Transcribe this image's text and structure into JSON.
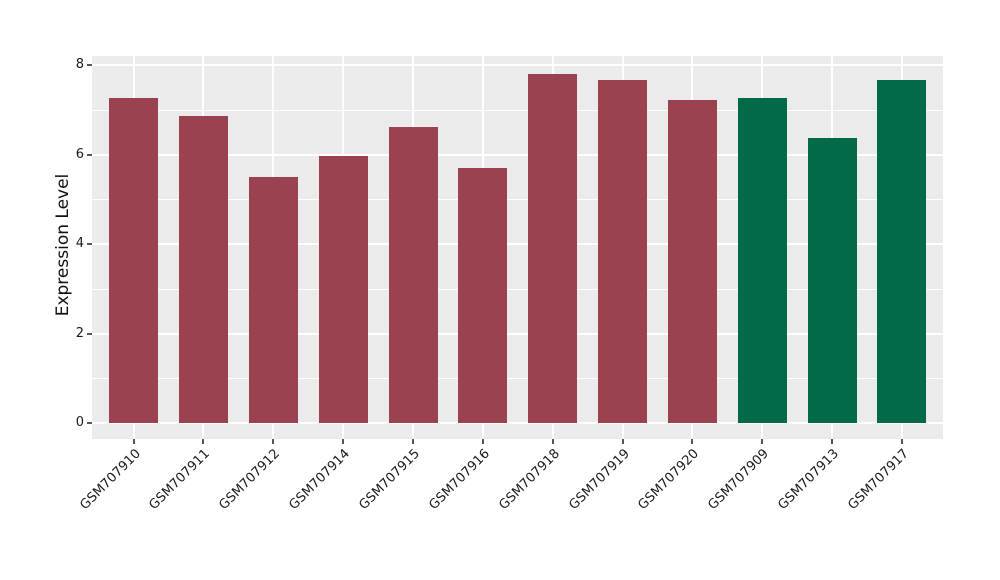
{
  "chart_data": {
    "type": "bar",
    "title": "",
    "xlabel": "",
    "ylabel": "Expression Level",
    "categories": [
      "GSM707910",
      "GSM707911",
      "GSM707912",
      "GSM707914",
      "GSM707915",
      "GSM707916",
      "GSM707918",
      "GSM707919",
      "GSM707920",
      "GSM707909",
      "GSM707913",
      "GSM707917"
    ],
    "values": [
      7.27,
      6.86,
      5.5,
      5.96,
      6.61,
      5.7,
      7.8,
      7.66,
      7.21,
      7.26,
      6.37,
      7.66
    ],
    "bar_colors": [
      "#9b4251",
      "#9b4251",
      "#9b4251",
      "#9b4251",
      "#9b4251",
      "#9b4251",
      "#9b4251",
      "#9b4251",
      "#9b4251",
      "#006947",
      "#006947",
      "#006947"
    ],
    "yticks": [
      0,
      2,
      4,
      6,
      8
    ],
    "minor_yticks": [
      1,
      3,
      5,
      7
    ],
    "ylim": [
      -0.36,
      8.22
    ],
    "legend": "none",
    "grid": {
      "color": "#ffffff",
      "horizontal_major": true,
      "horizontal_minor": true,
      "vertical_at_category_centers": true
    },
    "panel_background": "#ebebeb",
    "figure_background": "#ffffff",
    "tick_color": "#555555",
    "label_color": "#1a1a1a"
  }
}
